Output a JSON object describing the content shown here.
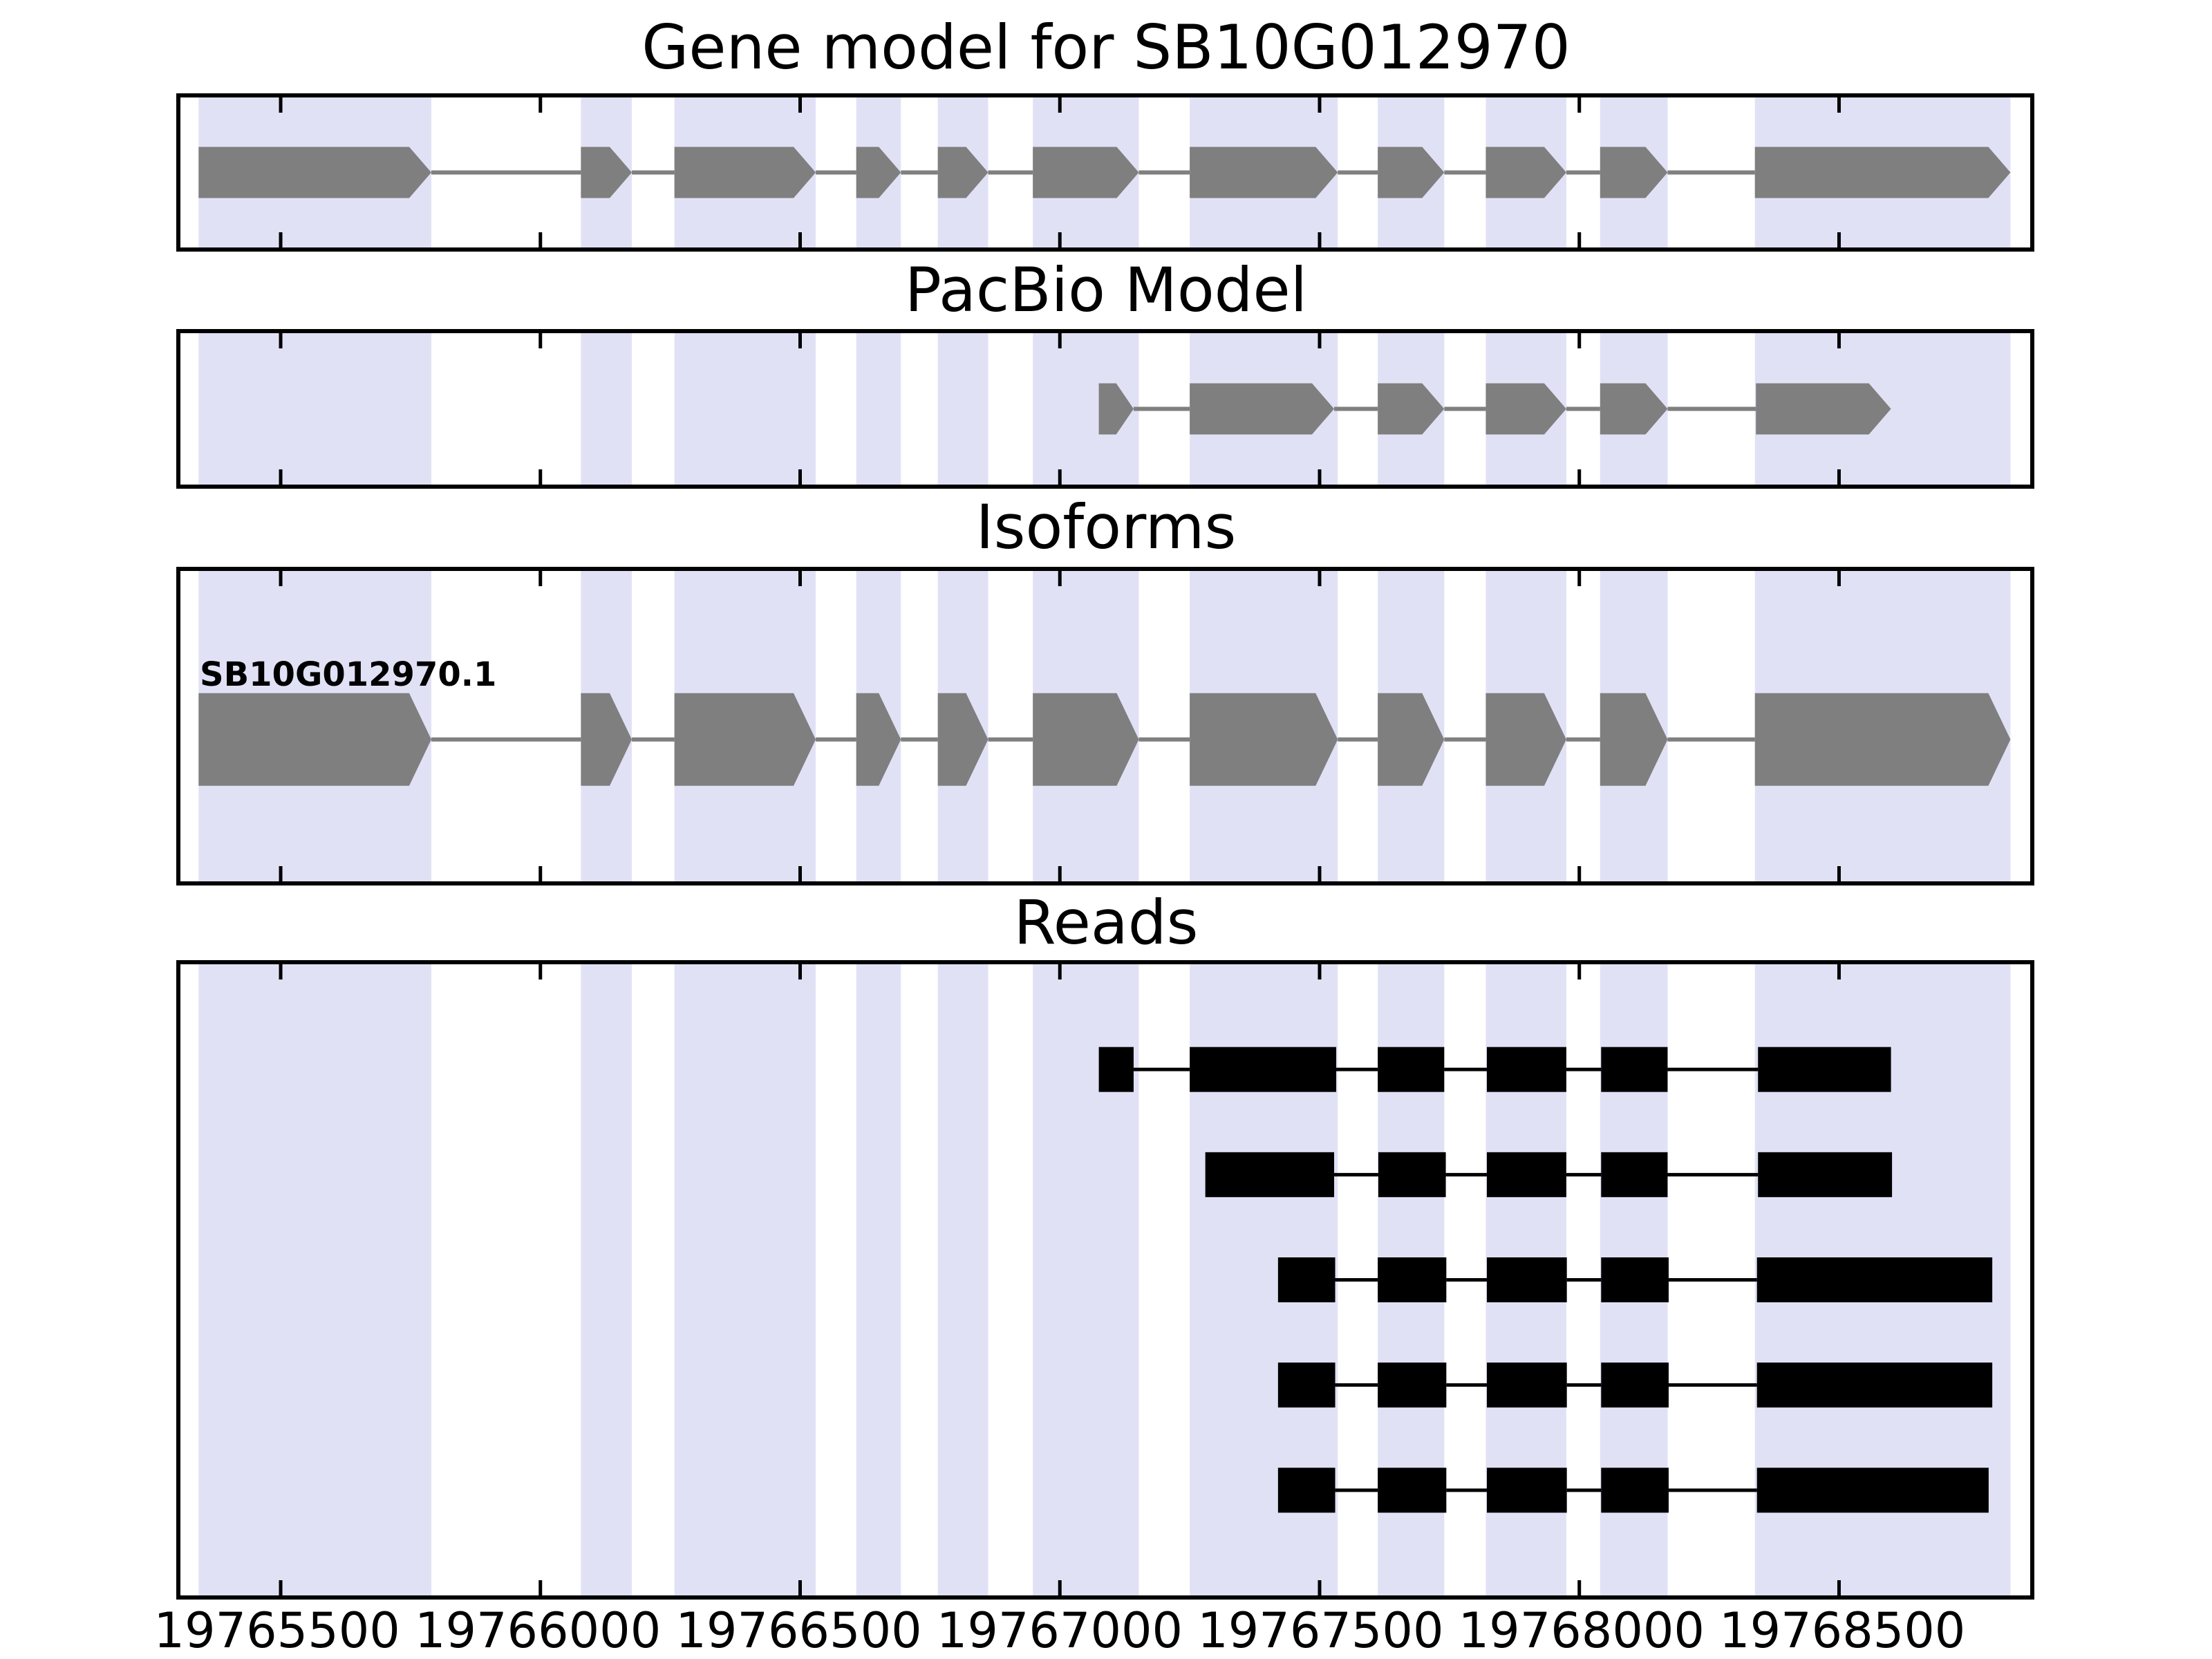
{
  "figure": {
    "background": "#ffffff"
  },
  "chart_data": {
    "type": "gene-model-tracks",
    "gene_id": "SB10G012970",
    "axis": {
      "xmin": 19765307,
      "xmax": 19768868,
      "tick_step": 500,
      "tick_values": [
        19765500,
        19766000,
        19766500,
        19767000,
        19767500,
        19768000,
        19768500
      ],
      "tick_labels": [
        "19765500",
        "19766000",
        "19766500",
        "19767000",
        "19767500",
        "19768000",
        "19768500"
      ],
      "tick_style": "inward-top-and-bottom"
    },
    "colors": {
      "exon_gray": "#7f7f7f",
      "read_black": "#000000",
      "band": "#e1e1f6",
      "frame": "#000000",
      "background": "#ffffff",
      "text": "#000000"
    },
    "highlight_regions": [
      [
        19765342,
        19765790
      ],
      [
        19766078,
        19766176
      ],
      [
        19766258,
        19766530
      ],
      [
        19766608,
        19766694
      ],
      [
        19766765,
        19766862
      ],
      [
        19766948,
        19767152
      ],
      [
        19767250,
        19767535
      ],
      [
        19767612,
        19767740
      ],
      [
        19767820,
        19767975
      ],
      [
        19768040,
        19768170
      ],
      [
        19768338,
        19768830
      ]
    ],
    "tracks": [
      {
        "name": "gene-model",
        "title": "Gene model for SB10G012970",
        "style": "arrow",
        "color": "#7f7f7f",
        "rows": [
          {
            "exons": [
              [
                19765342,
                19765790
              ],
              [
                19766078,
                19766176
              ],
              [
                19766258,
                19766530
              ],
              [
                19766608,
                19766694
              ],
              [
                19766765,
                19766862
              ],
              [
                19766948,
                19767152
              ],
              [
                19767250,
                19767535
              ],
              [
                19767612,
                19767740
              ],
              [
                19767820,
                19767975
              ],
              [
                19768040,
                19768170
              ],
              [
                19768338,
                19768830
              ]
            ]
          }
        ]
      },
      {
        "name": "pacbio-model",
        "title": "PacBio Model",
        "style": "arrow",
        "color": "#7f7f7f",
        "rows": [
          {
            "exons": [
              [
                19767075,
                19767142
              ],
              [
                19767250,
                19767528
              ],
              [
                19767612,
                19767740
              ],
              [
                19767820,
                19767975
              ],
              [
                19768040,
                19768170
              ],
              [
                19768340,
                19768600
              ]
            ]
          }
        ]
      },
      {
        "name": "isoforms",
        "title": "Isoforms",
        "style": "arrow",
        "color": "#7f7f7f",
        "rows": [
          {
            "label": "SB10G012970.1",
            "exons": [
              [
                19765342,
                19765790
              ],
              [
                19766078,
                19766176
              ],
              [
                19766258,
                19766530
              ],
              [
                19766608,
                19766694
              ],
              [
                19766765,
                19766862
              ],
              [
                19766948,
                19767152
              ],
              [
                19767250,
                19767535
              ],
              [
                19767612,
                19767740
              ],
              [
                19767820,
                19767975
              ],
              [
                19768040,
                19768170
              ],
              [
                19768338,
                19768830
              ]
            ]
          }
        ]
      },
      {
        "name": "reads",
        "title": "Reads",
        "style": "rect",
        "color": "#000000",
        "rows": [
          {
            "exons": [
              [
                19767075,
                19767142
              ],
              [
                19767250,
                19767532
              ],
              [
                19767612,
                19767740
              ],
              [
                19767822,
                19767975
              ],
              [
                19768042,
                19768170
              ],
              [
                19768344,
                19768600
              ]
            ]
          },
          {
            "exons": [
              [
                19767280,
                19767528
              ],
              [
                19767613,
                19767743
              ],
              [
                19767822,
                19767975
              ],
              [
                19768042,
                19768170
              ],
              [
                19768344,
                19768602
              ]
            ]
          },
          {
            "exons": [
              [
                19767420,
                19767530
              ],
              [
                19767612,
                19767744
              ],
              [
                19767822,
                19767976
              ],
              [
                19768042,
                19768172
              ],
              [
                19768342,
                19768795
              ]
            ]
          },
          {
            "exons": [
              [
                19767420,
                19767530
              ],
              [
                19767612,
                19767744
              ],
              [
                19767822,
                19767976
              ],
              [
                19768042,
                19768172
              ],
              [
                19768342,
                19768795
              ]
            ]
          },
          {
            "exons": [
              [
                19767420,
                19767530
              ],
              [
                19767612,
                19767744
              ],
              [
                19767822,
                19767976
              ],
              [
                19768042,
                19768172
              ],
              [
                19768342,
                19768788
              ]
            ]
          }
        ]
      }
    ]
  }
}
